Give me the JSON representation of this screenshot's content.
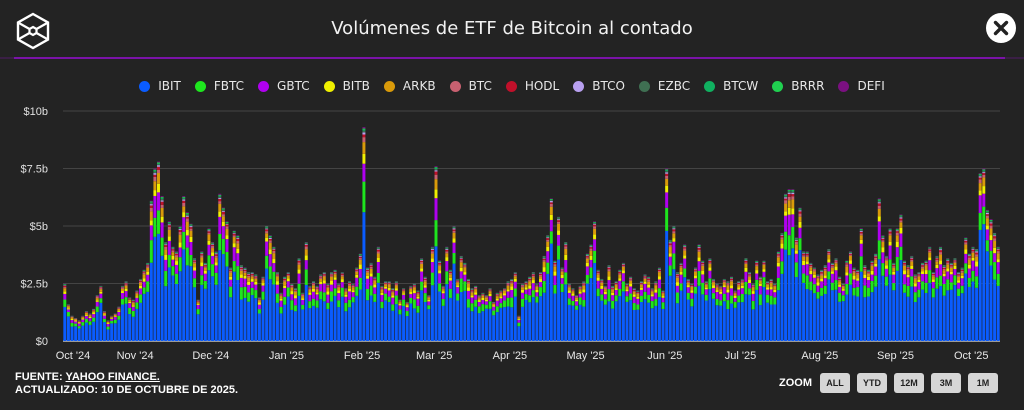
{
  "header": {
    "title": "Volúmenes de ETF de Bitcoin al contado",
    "logo_icon": "cube-logo-icon",
    "close_icon": "close-icon"
  },
  "footer": {
    "source_label": "FUENTE:",
    "source_link": "YAHOO FINANCE.",
    "updated": "ACTUALIZADO: 10 DE OCTUBRE DE 2025."
  },
  "zoom": {
    "label": "ZOOM",
    "buttons": [
      "ALL",
      "YTD",
      "12M",
      "3M",
      "1M"
    ]
  },
  "chart_data": {
    "type": "bar",
    "stacked": true,
    "title": "Volúmenes de ETF de Bitcoin al contado",
    "xlabel": "",
    "ylabel": "",
    "ylim": [
      0,
      10
    ],
    "y_unit": "billions USD",
    "y_ticks": [
      "$0",
      "$2.5b",
      "$5b",
      "$7.5b",
      "$10b"
    ],
    "y_tick_values": [
      0,
      2.5,
      5,
      7.5,
      10
    ],
    "x_ticks": [
      "Oct '24",
      "Nov '24",
      "Dec '24",
      "Jan '25",
      "Feb '25",
      "Mar '25",
      "Apr '25",
      "May '25",
      "Jun '25",
      "Jul '25",
      "Aug '25",
      "Sep '25",
      "Oct '25"
    ],
    "grid": true,
    "legend_position": "top-center",
    "series_names": [
      "IBIT",
      "FBTC",
      "GBTC",
      "BITB",
      "ARKB",
      "BTC",
      "HODL",
      "BTCO",
      "EZBC",
      "BTCW",
      "BRRR",
      "DEFI"
    ],
    "series_colors": [
      "#0a5cff",
      "#1ee61e",
      "#b000f0",
      "#f0f000",
      "#d99a0a",
      "#c86070",
      "#c0102a",
      "#b8a0f0",
      "#3f6f52",
      "#10b060",
      "#20d050",
      "#7a1080"
    ],
    "series_share": [
      0.62,
      0.12,
      0.1,
      0.04,
      0.05,
      0.02,
      0.015,
      0.008,
      0.007,
      0.005,
      0.005,
      0.005
    ],
    "months": [
      {
        "label": "Oct '24",
        "totals": [
          2.5,
          1.6,
          1.1,
          1.0,
          0.9,
          1.1,
          1.3,
          1.2,
          1.4,
          2.0,
          2.4,
          1.3,
          0.9,
          1.1,
          1.2,
          1.5,
          2.4,
          2.6,
          1.9,
          1.8
        ]
      },
      {
        "label": "Nov '24",
        "totals": [
          2.2,
          2.7,
          3.1,
          3.4,
          6.1,
          7.5,
          7.8,
          6.3,
          4.3,
          5.2,
          4.1,
          3.9,
          5.0,
          6.3,
          5.6,
          5.1,
          3.6,
          1.8,
          3.9,
          3.4,
          4.9
        ]
      },
      {
        "label": "Dec '24",
        "totals": [
          4.3,
          3.9,
          6.4,
          5.8,
          5.2,
          3.2,
          4.8,
          4.6,
          3.3,
          3.2,
          3.0,
          3.0,
          2.9,
          1.9,
          2.8,
          5.0,
          4.6,
          4.1,
          3.0,
          2.1,
          2.8
        ]
      },
      {
        "label": "Jan '25",
        "totals": [
          3.0,
          2.5,
          2.3,
          3.6,
          2.1,
          4.3,
          2.4,
          2.6,
          2.4,
          2.9,
          3.0,
          2.5,
          3.0,
          3.1,
          2.5,
          3.0,
          2.3,
          2.6,
          2.5,
          3.2,
          3.8
        ]
      },
      {
        "label": "Feb '25",
        "totals": [
          9.3,
          3.2,
          3.4,
          2.8,
          4.1,
          2.4,
          2.6,
          2.6,
          2.3,
          2.6,
          1.8,
          2.3,
          1.7,
          2.4,
          2.5,
          2.2,
          3.6,
          2.8,
          2.0,
          4.1
        ]
      },
      {
        "label": "Mar '25",
        "totals": [
          7.6,
          3.5,
          2.4,
          4.1,
          3.1,
          5.0,
          2.7,
          3.7,
          3.4,
          2.7,
          2.3,
          2.4,
          2.0,
          2.1,
          2.0,
          2.3,
          1.7,
          2.1,
          2.2,
          2.3,
          2.6
        ]
      },
      {
        "label": "Apr '25",
        "totals": [
          2.7,
          3.0,
          1.1,
          2.5,
          2.6,
          2.8,
          3.0,
          2.5,
          3.0,
          3.7,
          4.6,
          6.2,
          3.5,
          5.4,
          3.2,
          4.3,
          2.5,
          2.3,
          2.0,
          2.4,
          2.6
        ]
      },
      {
        "label": "May '25",
        "totals": [
          3.8,
          4.2,
          5.2,
          3.1,
          2.7,
          2.4,
          3.3,
          2.4,
          2.6,
          3.1,
          3.4,
          2.5,
          2.8,
          2.3,
          2.2,
          2.6,
          2.9,
          2.8,
          2.3,
          2.6,
          3.2,
          2.2
        ]
      },
      {
        "label": "Jun '25",
        "totals": [
          7.5,
          4.4,
          5.0,
          3.0,
          3.4,
          4.2,
          2.7,
          2.5,
          3.2,
          4.2,
          3.5,
          2.6,
          3.6,
          2.7,
          2.5,
          2.4,
          2.7,
          2.6,
          2.8,
          2.2,
          2.6
        ]
      },
      {
        "label": "Jul '25",
        "totals": [
          2.7,
          3.6,
          3.0,
          2.5,
          3.5,
          2.8,
          3.5,
          2.6,
          2.7,
          2.5,
          3.9,
          4.7,
          6.4,
          6.6,
          6.6,
          4.5,
          5.8,
          3.9,
          3.9,
          3.4,
          3.2,
          2.9
        ]
      },
      {
        "label": "Aug '25",
        "totals": [
          3.1,
          3.3,
          4.0,
          3.4,
          3.6,
          2.8,
          2.5,
          3.5,
          3.9,
          3.2,
          3.1,
          4.9,
          3.3,
          3.1,
          3.5,
          3.8,
          6.2,
          4.6,
          3.7,
          4.9,
          3.4
        ]
      },
      {
        "label": "Sep '25",
        "totals": [
          4.9,
          5.5,
          3.5,
          3.3,
          3.7,
          2.9,
          3.0,
          3.4,
          3.5,
          4.1,
          3.0,
          3.7,
          4.1,
          3.3,
          3.6,
          3.4,
          3.6,
          3.0,
          3.2,
          4.5,
          3.8
        ]
      },
      {
        "label": "Oct '25",
        "totals": [
          4.1,
          4.0,
          7.3,
          7.5,
          5.7,
          5.3,
          4.7,
          4.1
        ]
      }
    ]
  }
}
